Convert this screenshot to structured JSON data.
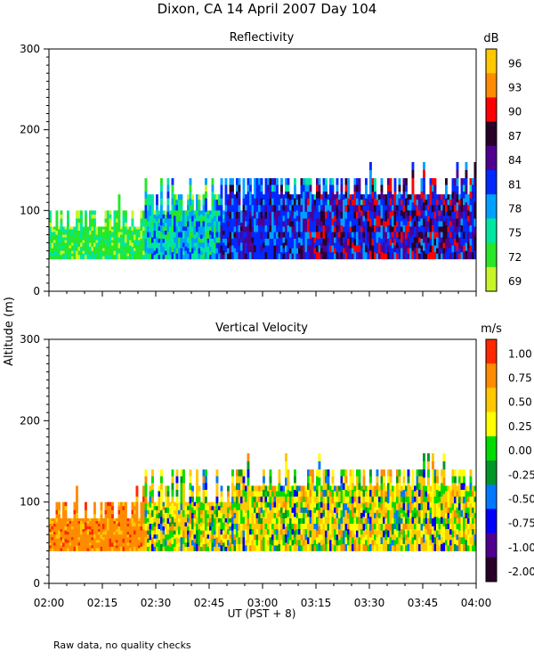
{
  "figure": {
    "title": "Dixon, CA 14 April 2007  Day 104",
    "ylabel": "Altitude (m)",
    "xlabel": "UT  (PST + 8)",
    "footnote": "Raw data, no quality checks",
    "x_ticks": [
      "02:00",
      "02:15",
      "02:30",
      "02:45",
      "03:00",
      "03:15",
      "03:30",
      "03:45",
      "04:00"
    ]
  },
  "chart_data": [
    {
      "type": "heatmap",
      "id": "reflectivity",
      "title": "Reflectivity",
      "x": "time UT 02:00-04:00",
      "xlim_minutes": [
        0,
        120
      ],
      "ylim": [
        0,
        300
      ],
      "y_ticks": [
        0,
        100,
        200,
        300
      ],
      "data_altitude_range": [
        40,
        160
      ],
      "colorbar": {
        "unit": "dB",
        "labels": [
          "96",
          "93",
          "90",
          "87",
          "84",
          "81",
          "78",
          "75",
          "72",
          "69"
        ],
        "colors": [
          "#ffc800",
          "#ff8c00",
          "#ff0000",
          "#280028",
          "#500090",
          "#0028ff",
          "#00a0ff",
          "#00e6a0",
          "#28e628",
          "#c8f528"
        ]
      },
      "description": "Echo layer between ~40 and ~100-140 m; weak (green, ~72-75 dB) before 02:30, stronger (blue/purple, ~78-87 dB) later"
    },
    {
      "type": "heatmap",
      "id": "velocity",
      "title": "Vertical Velocity",
      "x": "time UT 02:00-04:00",
      "xlim_minutes": [
        0,
        120
      ],
      "ylim": [
        0,
        300
      ],
      "y_ticks": [
        0,
        100,
        200,
        300
      ],
      "data_altitude_range": [
        40,
        160
      ],
      "colorbar": {
        "unit": "m/s",
        "labels": [
          "1.00",
          "0.75",
          "0.50",
          "0.25",
          "0.00",
          "-0.25",
          "-0.50",
          "-0.75",
          "-1.00",
          "-2.00"
        ],
        "colors": [
          "#ff2800",
          "#ff8c00",
          "#ffc800",
          "#ffff00",
          "#00dc00",
          "#009628",
          "#0078ff",
          "#0000ff",
          "#500090",
          "#280028"
        ]
      },
      "description": "Mostly orange (~0.75 m/s) before 02:30; mixed yellow/green with blue and orange patches afterward"
    }
  ]
}
